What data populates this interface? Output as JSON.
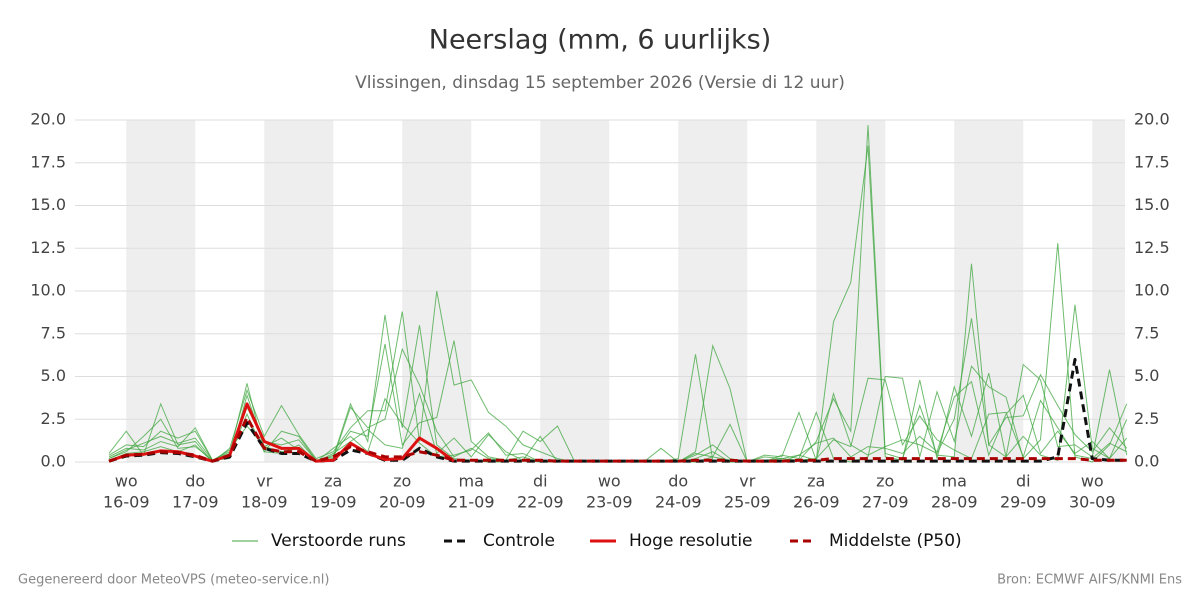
{
  "chart_data": {
    "type": "line",
    "title": "Neerslag (mm, 6 uurlijks)",
    "subtitle": "Vlissingen, dinsdag 15 september 2026 (Versie di 12 uur)",
    "footer_left": "Gegenereerd door MeteoVPS (meteo-service.nl)",
    "footer_right": "Bron: ECMWF AIFS/KNMI Ens",
    "categories": [
      null,
      [
        "wo",
        "16-09"
      ],
      null,
      null,
      null,
      [
        "do",
        "17-09"
      ],
      null,
      null,
      null,
      [
        "vr",
        "18-09"
      ],
      null,
      null,
      null,
      [
        "za",
        "19-09"
      ],
      null,
      null,
      null,
      [
        "zo",
        "20-09"
      ],
      null,
      null,
      null,
      [
        "ma",
        "21-09"
      ],
      null,
      null,
      null,
      [
        "di",
        "22-09"
      ],
      null,
      null,
      null,
      [
        "wo",
        "23-09"
      ],
      null,
      null,
      null,
      [
        "do",
        "24-09"
      ],
      null,
      null,
      null,
      [
        "vr",
        "25-09"
      ],
      null,
      null,
      null,
      [
        "za",
        "26-09"
      ],
      null,
      null,
      null,
      [
        "zo",
        "27-09"
      ],
      null,
      null,
      null,
      [
        "ma",
        "28-09"
      ],
      null,
      null,
      null,
      [
        "di",
        "29-09"
      ],
      null,
      null,
      null,
      [
        "wo",
        "30-09"
      ],
      null,
      null
    ],
    "ylim": [
      0,
      20
    ],
    "yticks": [
      {
        "value": 0,
        "label": "0.0"
      },
      2.5,
      {
        "value": 5,
        "label": "5.0"
      },
      7.5,
      {
        "value": 10,
        "label": "10.0"
      },
      12.5,
      {
        "value": 15,
        "label": "15.0"
      },
      17.5,
      {
        "value": 20,
        "label": "20.0"
      }
    ],
    "grid": true,
    "legend": "bottom",
    "series": [
      {
        "name": "Verstoorde runs",
        "color": "#3fa63f",
        "members": [
          [
            0.3,
            0.8,
            0.7,
            1.2,
            0.9,
            2.0,
            0.1,
            0.5,
            4.6,
            0.6,
            1.8,
            1.5,
            0.1,
            0.3,
            3.4,
            1.2,
            8.6,
            2.0,
            8.0,
            1.0,
            0.2,
            0.1,
            0.0,
            0.0,
            0.1,
            0.0,
            0.0,
            0.0,
            0.0,
            0.0,
            0.0,
            0.0,
            0.0,
            0.0,
            0.5,
            0.3,
            0.1,
            0.0,
            0.1,
            0.2,
            0.1,
            1.2,
            3.7,
            1.8,
            19.7,
            0.5,
            0.2,
            3.3,
            0.4,
            0.3,
            11.6,
            1.0,
            0.3,
            5.7,
            4.8,
            0.9,
            1.0,
            0.3,
            5.4,
            0.4
          ],
          [
            0.5,
            1.8,
            0.4,
            3.4,
            1.0,
            1.2,
            0.0,
            0.8,
            4.2,
            1.5,
            3.3,
            1.6,
            0.2,
            0.6,
            2.0,
            3.0,
            3.0,
            8.8,
            1.2,
            10.0,
            4.5,
            4.8,
            2.9,
            2.1,
            1.0,
            0.6,
            0.2,
            0.0,
            0.0,
            0.0,
            0.0,
            0.1,
            0.0,
            0.2,
            6.3,
            0.1,
            0.0,
            0.0,
            0.0,
            0.4,
            0.2,
            2.9,
            0.2,
            0.0,
            0.3,
            5.0,
            4.9,
            0.3,
            4.1,
            1.2,
            5.6,
            4.4,
            3.8,
            0.2,
            1.3,
            12.8,
            0.3,
            0.0,
            1.0,
            3.4
          ],
          [
            0.2,
            0.6,
            1.5,
            2.5,
            0.8,
            0.9,
            0.1,
            0.2,
            3.9,
            0.9,
            0.6,
            0.8,
            0.0,
            0.4,
            1.8,
            1.5,
            6.9,
            1.0,
            2.3,
            2.6,
            7.1,
            1.2,
            0.3,
            0.1,
            0.3,
            0.0,
            0.0,
            0.0,
            0.0,
            0.0,
            0.0,
            0.0,
            0.0,
            0.0,
            0.6,
            6.8,
            4.3,
            0.0,
            0.0,
            0.0,
            0.4,
            0.1,
            8.2,
            10.5,
            18.5,
            0.3,
            0.1,
            4.8,
            0.2,
            4.4,
            1.5,
            5.2,
            0.3,
            1.5,
            0.4,
            0.1,
            9.2,
            0.8,
            0.2,
            2.5
          ],
          [
            0.4,
            1.0,
            0.9,
            1.8,
            1.4,
            1.8,
            0.1,
            0.6,
            3.2,
            1.2,
            1.0,
            1.3,
            0.1,
            0.2,
            3.2,
            2.0,
            2.5,
            6.6,
            4.5,
            1.8,
            0.3,
            0.8,
            0.2,
            0.1,
            1.8,
            1.2,
            2.1,
            0.0,
            0.0,
            0.0,
            0.1,
            0.0,
            0.8,
            0.0,
            0.0,
            0.3,
            2.2,
            0.0,
            0.4,
            0.3,
            2.9,
            0.1,
            4.0,
            1.0,
            0.4,
            0.9,
            1.3,
            1.0,
            0.5,
            2.5,
            8.4,
            1.0,
            2.6,
            2.7,
            5.1,
            3.3,
            1.6,
            0.6,
            2.0,
            0.8
          ],
          [
            0.1,
            0.5,
            0.6,
            0.9,
            0.6,
            1.0,
            0.0,
            0.4,
            2.8,
            0.6,
            0.5,
            1.0,
            0.0,
            0.5,
            1.2,
            1.9,
            1.0,
            0.8,
            4.0,
            0.5,
            1.4,
            0.3,
            1.6,
            0.6,
            0.1,
            1.5,
            0.0,
            0.0,
            0.0,
            0.0,
            0.0,
            0.0,
            0.0,
            0.0,
            0.4,
            1.0,
            0.2,
            0.0,
            0.3,
            0.2,
            0.4,
            1.1,
            1.4,
            0.3,
            0.9,
            0.8,
            0.5,
            1.5,
            0.6,
            3.8,
            4.7,
            0.4,
            2.8,
            3.9,
            0.5,
            1.8,
            0.5,
            1.2,
            0.2,
            1.4
          ],
          [
            0.2,
            0.7,
            1.1,
            1.5,
            1.1,
            1.4,
            0.1,
            0.7,
            2.1,
            0.9,
            1.4,
            0.7,
            0.0,
            0.8,
            1.5,
            0.6,
            3.7,
            2.2,
            1.1,
            0.3,
            0.4,
            0.7,
            1.7,
            0.4,
            0.5,
            0.0,
            0.0,
            0.0,
            0.0,
            0.0,
            0.0,
            0.0,
            0.0,
            0.0,
            0.2,
            0.6,
            0.0,
            0.0,
            0.0,
            0.1,
            0.1,
            0.2,
            1.3,
            0.9,
            4.9,
            4.8,
            1.0,
            2.7,
            1.3,
            0.7,
            0.2,
            2.8,
            2.9,
            0.3,
            3.6,
            2.0,
            0.4,
            0.2,
            1.1,
            0.6
          ]
        ]
      },
      {
        "name": "Controle",
        "color": "#111111",
        "dash": true,
        "values": [
          0.05,
          0.35,
          0.4,
          0.55,
          0.5,
          0.3,
          0.05,
          0.3,
          2.3,
          0.8,
          0.5,
          0.5,
          0.05,
          0.1,
          0.7,
          0.5,
          0.1,
          0.1,
          0.8,
          0.3,
          0.05,
          0.05,
          0.05,
          0.05,
          0.05,
          0.05,
          0.05,
          0.05,
          0.05,
          0.05,
          0.05,
          0.05,
          0.05,
          0.05,
          0.05,
          0.05,
          0.05,
          0.05,
          0.05,
          0.05,
          0.05,
          0.05,
          0.05,
          0.05,
          0.05,
          0.05,
          0.05,
          0.05,
          0.05,
          0.05,
          0.05,
          0.05,
          0.05,
          0.05,
          0.05,
          0.3,
          6.0,
          0.2,
          0.1,
          0.1
        ]
      },
      {
        "name": "Hoge resolutie",
        "color": "#dd1111",
        "values": [
          0.05,
          0.4,
          0.45,
          0.65,
          0.6,
          0.35,
          0.05,
          0.4,
          3.4,
          1.2,
          0.8,
          0.8,
          0.05,
          0.1,
          1.1,
          0.5,
          0.15,
          0.2,
          1.4,
          0.8,
          0.05,
          null,
          null,
          null,
          null,
          null,
          null,
          null,
          null,
          null,
          null,
          null,
          null,
          null,
          null,
          null,
          null,
          null,
          null,
          null,
          null,
          null,
          null,
          null,
          null,
          null,
          null,
          null,
          null,
          null,
          null,
          null,
          null,
          null,
          null,
          null,
          null,
          null,
          null,
          null
        ]
      },
      {
        "name": "Middelste (P50)",
        "color": "#aa0000",
        "dash": true,
        "values": [
          0.05,
          0.4,
          0.45,
          0.6,
          0.55,
          0.4,
          0.05,
          0.4,
          2.6,
          0.8,
          0.6,
          0.6,
          0.05,
          0.3,
          0.9,
          0.6,
          0.3,
          0.3,
          0.6,
          0.4,
          0.1,
          0.1,
          0.1,
          0.1,
          0.1,
          0.1,
          0.05,
          0.05,
          0.05,
          0.05,
          0.05,
          0.05,
          0.05,
          0.05,
          0.1,
          0.1,
          0.1,
          0.05,
          0.05,
          0.05,
          0.1,
          0.1,
          0.2,
          0.2,
          0.2,
          0.2,
          0.2,
          0.2,
          0.2,
          0.2,
          0.2,
          0.2,
          0.2,
          0.2,
          0.2,
          0.2,
          0.2,
          0.1,
          0.1,
          0.1
        ]
      }
    ]
  }
}
